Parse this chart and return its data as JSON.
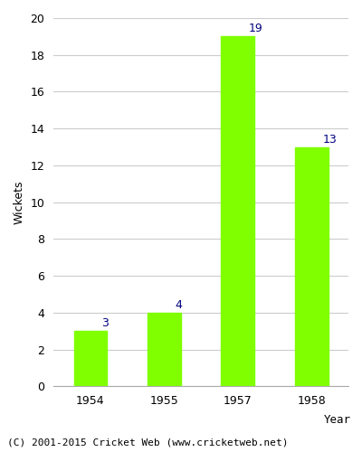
{
  "categories": [
    "1954",
    "1955",
    "1957",
    "1958"
  ],
  "values": [
    3,
    4,
    19,
    13
  ],
  "bar_color": "#7FFF00",
  "label_color": "#000080",
  "xlabel": "Year",
  "ylabel": "Wickets",
  "ylim": [
    0,
    20
  ],
  "yticks": [
    0,
    2,
    4,
    6,
    8,
    10,
    12,
    14,
    16,
    18,
    20
  ],
  "footer": "(C) 2001-2015 Cricket Web (www.cricketweb.net)",
  "background_color": "#ffffff",
  "grid_color": "#cccccc",
  "label_fontsize": 9,
  "axis_fontsize": 9,
  "footer_fontsize": 8,
  "bar_width": 0.45
}
